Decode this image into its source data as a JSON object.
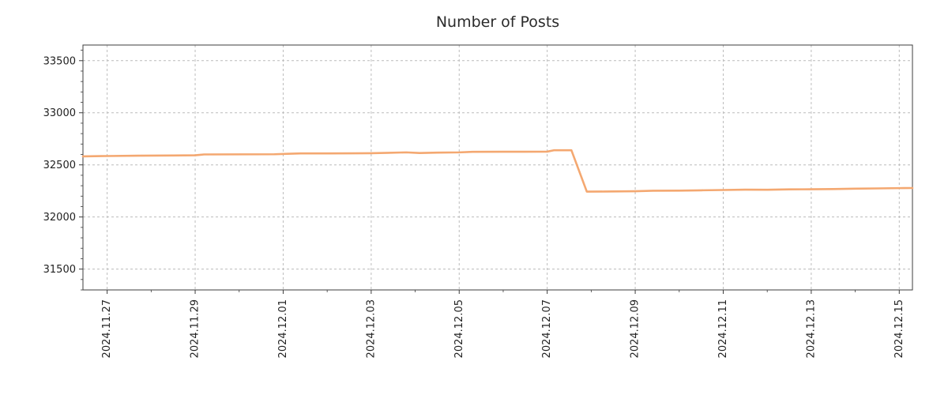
{
  "chart_data": {
    "type": "line",
    "title": "Number of Posts",
    "xlabel": "",
    "ylabel": "",
    "grid": true,
    "legend": false,
    "line_color": "#f4a871",
    "xlim": [
      -0.55,
      18.3
    ],
    "ylim": [
      31300,
      33650
    ],
    "x_ticks": [
      0,
      2,
      4,
      6,
      8,
      10,
      12,
      14,
      16,
      18
    ],
    "x_tick_labels": [
      "2024.11.27",
      "2024.11.29",
      "2024.12.01",
      "2024.12.03",
      "2024.12.05",
      "2024.12.07",
      "2024.12.09",
      "2024.12.11",
      "2024.12.13",
      "2024.12.15"
    ],
    "y_ticks": [
      31500,
      32000,
      32500,
      33000,
      33500
    ],
    "y_tick_labels": [
      "31500",
      "32000",
      "32500",
      "33000",
      "33500"
    ],
    "series": [
      {
        "name": "Number of Posts",
        "points": [
          [
            -0.55,
            32582
          ],
          [
            0,
            32585
          ],
          [
            0.7,
            32588
          ],
          [
            1.5,
            32590
          ],
          [
            2,
            32592
          ],
          [
            2.2,
            32600
          ],
          [
            3,
            32601
          ],
          [
            3.8,
            32602
          ],
          [
            4.1,
            32606
          ],
          [
            4.4,
            32610
          ],
          [
            5,
            32610
          ],
          [
            5.6,
            32611
          ],
          [
            6,
            32612
          ],
          [
            6.4,
            32616
          ],
          [
            6.8,
            32620
          ],
          [
            7.1,
            32614
          ],
          [
            7.5,
            32618
          ],
          [
            8,
            32620
          ],
          [
            8.3,
            32625
          ],
          [
            9,
            32626
          ],
          [
            9.5,
            32626
          ],
          [
            10,
            32627
          ],
          [
            10.15,
            32640
          ],
          [
            10.55,
            32640
          ],
          [
            10.9,
            32243
          ],
          [
            11.3,
            32244
          ],
          [
            12,
            32247
          ],
          [
            12.4,
            32252
          ],
          [
            13,
            32253
          ],
          [
            13.5,
            32256
          ],
          [
            14,
            32259
          ],
          [
            14.5,
            32262
          ],
          [
            15,
            32261
          ],
          [
            15.5,
            32265
          ],
          [
            16,
            32266
          ],
          [
            16.5,
            32268
          ],
          [
            17,
            32272
          ],
          [
            17.5,
            32274
          ],
          [
            18,
            32277
          ],
          [
            18.3,
            32278
          ]
        ]
      }
    ]
  }
}
